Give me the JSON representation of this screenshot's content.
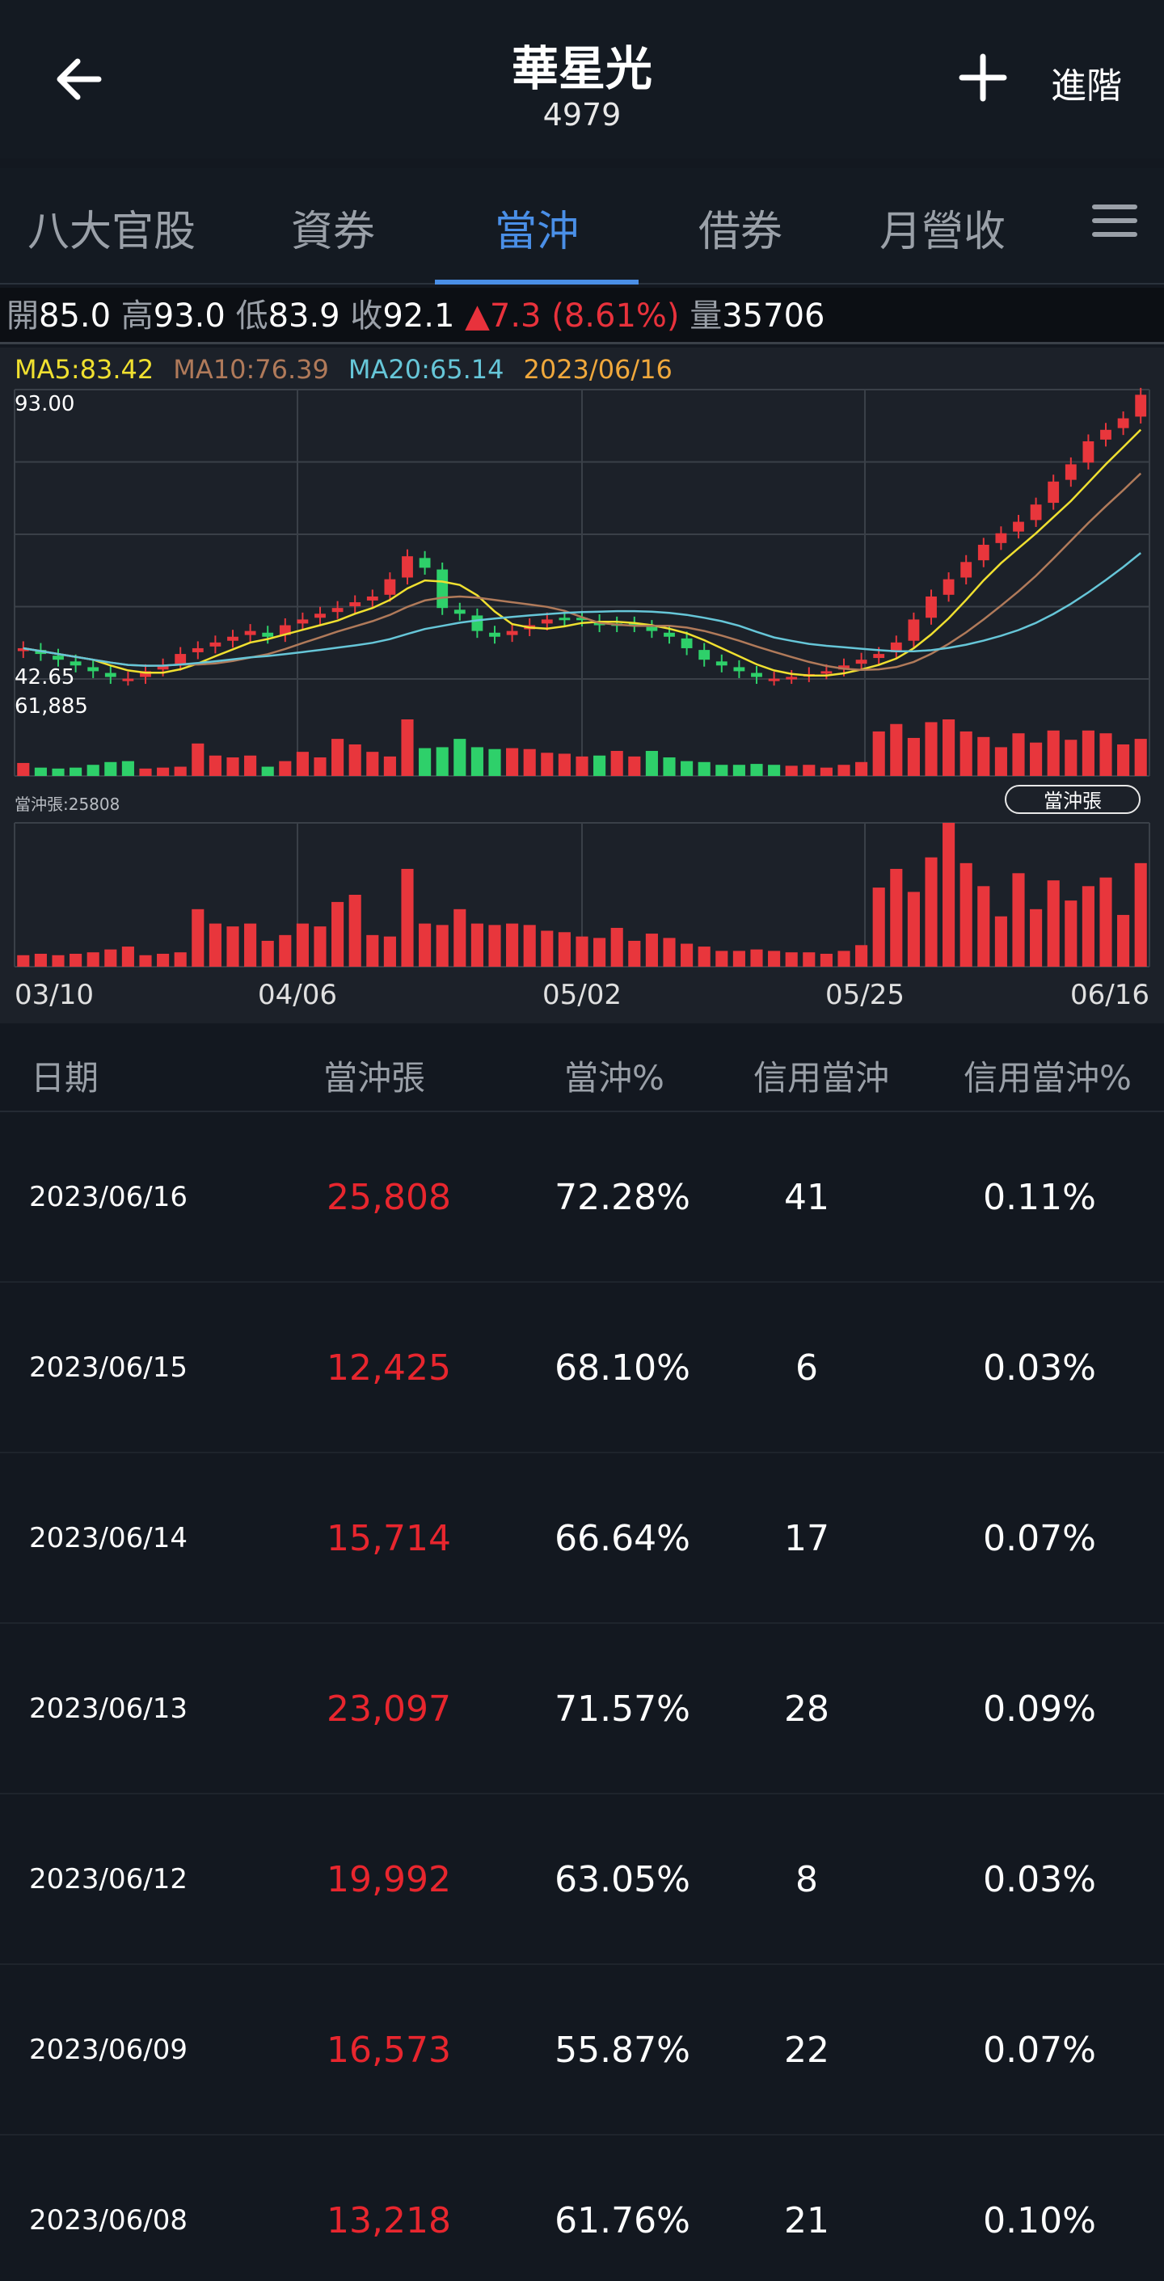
{
  "header": {
    "title": "華星光",
    "code": "4979",
    "advanced_label": "進階"
  },
  "tabs": [
    {
      "label": "八大官股"
    },
    {
      "label": "資券"
    },
    {
      "label": "當沖"
    },
    {
      "label": "借券"
    },
    {
      "label": "月營收"
    }
  ],
  "quote": {
    "open_label": "開",
    "open": "85.0",
    "high_label": "高",
    "high": "93.0",
    "low_label": "低",
    "low": "83.9",
    "close_label": "收",
    "close": "92.1",
    "change": "7.3",
    "change_pct": "(8.61%)",
    "volume_label": "量",
    "volume": "35706"
  },
  "chart": {
    "ma5": "MA5:83.42",
    "ma10": "MA10:76.39",
    "ma20": "MA20:65.14",
    "date": "2023/06/16",
    "price_max": "93.00",
    "price_min": "42.65",
    "volume_max": "61,885",
    "daytrade_label": "當沖張:25808",
    "toggle_label": "當沖張",
    "x_labels": [
      "03/10",
      "04/06",
      "05/02",
      "05/25",
      "06/16"
    ],
    "colors": {
      "up": "#e8363c",
      "down": "#2ed06a",
      "ma5": "#f0e030",
      "ma10": "#b07a5a",
      "ma20": "#66c6d8",
      "date": "#f0a83c"
    }
  },
  "chart_data": {
    "type": "bar",
    "title": "當沖張",
    "x_start": "03/10",
    "x_end": "06/16",
    "close_prices": [
      48,
      47,
      46,
      45,
      44,
      43,
      42.7,
      44,
      45,
      47,
      48,
      49,
      50,
      51,
      50,
      52,
      53,
      54,
      55,
      56,
      57,
      60,
      64,
      62,
      55,
      54,
      51,
      50,
      51,
      52,
      53,
      53,
      53,
      52,
      52,
      52,
      51,
      50,
      48,
      46,
      45,
      44,
      43,
      42.7,
      43,
      43.5,
      44,
      45,
      46,
      47,
      49,
      53,
      57,
      60,
      63,
      66,
      68,
      70,
      73,
      77,
      80,
      84,
      86,
      88,
      92.1
    ],
    "volumes": [
      14,
      9,
      8,
      9,
      12,
      15,
      16,
      8,
      9,
      10,
      35,
      22,
      20,
      22,
      10,
      16,
      26,
      20,
      40,
      34,
      26,
      21,
      61,
      30,
      31,
      40,
      31,
      29,
      30,
      29,
      25,
      24,
      21,
      22,
      27,
      21,
      27,
      20,
      16,
      15,
      12,
      12,
      13,
      12,
      11,
      12,
      9,
      12,
      15,
      48,
      56,
      41,
      58,
      61,
      48,
      42,
      31,
      46,
      36,
      49,
      39,
      49,
      46,
      34,
      40
    ],
    "daytrade": [
      8,
      9,
      8,
      9,
      10,
      12,
      14,
      8,
      9,
      10,
      40,
      30,
      28,
      30,
      18,
      22,
      30,
      28,
      45,
      50,
      22,
      21,
      68,
      30,
      29,
      40,
      30,
      29,
      30,
      29,
      25,
      24,
      21,
      20,
      27,
      18,
      23,
      20,
      16,
      14,
      11,
      11,
      12,
      11,
      10,
      10,
      9,
      11,
      15,
      55,
      68,
      52,
      76,
      100,
      72,
      56,
      35,
      65,
      40,
      60,
      46,
      56,
      62,
      36,
      72
    ]
  },
  "table": {
    "headers": {
      "date": "日期",
      "daytrade": "當沖張",
      "pct": "當沖%",
      "credit": "信用當沖",
      "credit_pct": "信用當沖%"
    },
    "rows": [
      {
        "date": "2023/06/16",
        "daytrade": "25,808",
        "pct": "72.28%",
        "credit": "41",
        "credit_pct": "0.11%"
      },
      {
        "date": "2023/06/15",
        "daytrade": "12,425",
        "pct": "68.10%",
        "credit": "6",
        "credit_pct": "0.03%"
      },
      {
        "date": "2023/06/14",
        "daytrade": "15,714",
        "pct": "66.64%",
        "credit": "17",
        "credit_pct": "0.07%"
      },
      {
        "date": "2023/06/13",
        "daytrade": "23,097",
        "pct": "71.57%",
        "credit": "28",
        "credit_pct": "0.09%"
      },
      {
        "date": "2023/06/12",
        "daytrade": "19,992",
        "pct": "63.05%",
        "credit": "8",
        "credit_pct": "0.03%"
      },
      {
        "date": "2023/06/09",
        "daytrade": "16,573",
        "pct": "55.87%",
        "credit": "22",
        "credit_pct": "0.07%"
      },
      {
        "date": "2023/06/08",
        "daytrade": "13,218",
        "pct": "61.76%",
        "credit": "21",
        "credit_pct": "0.10%"
      }
    ]
  }
}
